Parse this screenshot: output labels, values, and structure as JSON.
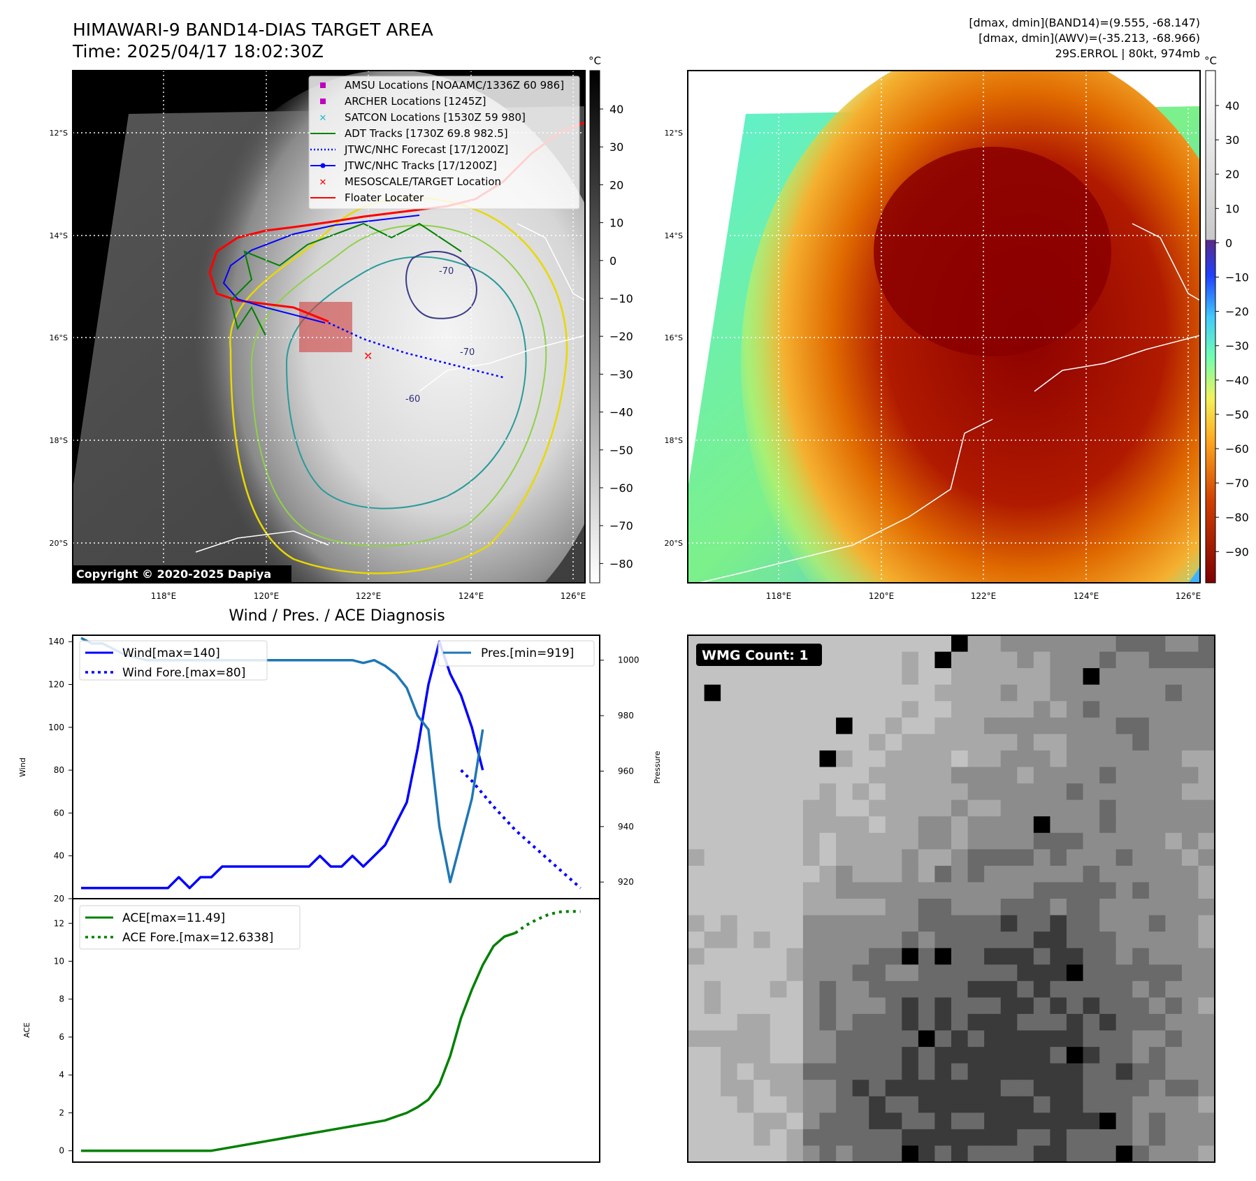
{
  "header": {
    "title_line1": "HIMAWARI-9 BAND14-DIAS TARGET AREA",
    "title_line2": "Time: 2025/04/17 18:02:30Z",
    "info_line1": "[dmax, dmin](BAND14)=(9.555, -68.147)",
    "info_line2": "[dmax, dmin](AWV)=(-35.213, -68.966)",
    "info_line3": "29S.ERROL | 80kt, 974mb"
  },
  "maps": {
    "lat_labels": [
      "12°S",
      "14°S",
      "16°S",
      "18°S",
      "20°S"
    ],
    "lon_labels": [
      "118°E",
      "120°E",
      "122°E",
      "124°E",
      "126°E"
    ],
    "copyright": "Copyright © 2020-2025 Dapiya",
    "contour_labels": [
      "-70",
      "-70",
      "-60"
    ],
    "gray_colorbar": {
      "unit": "°C",
      "ticks": [
        "40",
        "30",
        "20",
        "10",
        "0",
        "−10",
        "−20",
        "−30",
        "−40",
        "−50",
        "−60",
        "−70",
        "−80"
      ]
    },
    "color_colorbar": {
      "unit": "°C",
      "ticks": [
        "40",
        "30",
        "20",
        "10",
        "0",
        "−10",
        "−20",
        "−30",
        "−40",
        "−50",
        "−60",
        "−70",
        "−80",
        "−90"
      ]
    },
    "legend": [
      {
        "label": "AMSU Locations [NOAAMC/1336Z 60 986]",
        "color": "#bf00bf",
        "marker": "square"
      },
      {
        "label": "ARCHER Locations [1245Z]",
        "color": "#bf00bf",
        "marker": "square"
      },
      {
        "label": "SATCON Locations [1530Z 59 980]",
        "color": "#17becf",
        "marker": "x"
      },
      {
        "label": "ADT Tracks [1730Z 69.8 982.5]",
        "color": "#008000",
        "marker": "line"
      },
      {
        "label": "JTWC/NHC Forecast [17/1200Z]",
        "color": "#0000ff",
        "marker": "dotted"
      },
      {
        "label": "JTWC/NHC Tracks [17/1200Z]",
        "color": "#0000ff",
        "marker": "line-dot"
      },
      {
        "label": "MESOSCALE/TARGET Location",
        "color": "#ff0000",
        "marker": "x"
      },
      {
        "label": "Floater Locater",
        "color": "#ff0000",
        "marker": "line"
      }
    ]
  },
  "diagnosis": {
    "title": "Wind / Pres. / ACE Diagnosis",
    "wind_ylabel": "Wind",
    "pres_ylabel": "Pressure",
    "ace_ylabel": "ACE",
    "legend_wind": "Wind[max=140]",
    "legend_wind_fore": "Wind Fore.[max=80]",
    "legend_pres": "Pres.[min=919]",
    "legend_ace": "ACE[max=11.49]",
    "legend_ace_fore": "ACE Fore.[max=12.6338]"
  },
  "wmg": {
    "label": "WMG Count: 1"
  },
  "colors": {
    "wind": "#0000ff",
    "pres": "#1f77b4",
    "ace": "#008000"
  },
  "chart_data": [
    {
      "type": "line",
      "title": "Wind / Pres. / ACE Diagnosis",
      "ylabel": "Wind",
      "ylim": [
        20,
        143
      ],
      "yticks": [
        20,
        40,
        60,
        80,
        100,
        120,
        140
      ],
      "series": [
        {
          "name": "Wind[max=140]",
          "x": [
            0,
            1,
            2,
            3,
            4,
            5,
            6,
            7,
            8,
            9,
            10,
            11,
            12,
            13,
            14,
            15,
            16,
            17,
            18,
            19,
            20,
            21,
            22,
            23,
            24,
            25,
            26,
            27,
            28,
            29,
            30,
            31,
            32,
            33,
            34,
            35
          ],
          "values": [
            25,
            25,
            25,
            25,
            25,
            25,
            25,
            25,
            25,
            30,
            25,
            30,
            30,
            35,
            35,
            35,
            35,
            35,
            35,
            35,
            35,
            35,
            40,
            35,
            35,
            40,
            35,
            40,
            45,
            55,
            65,
            90,
            120,
            140,
            125,
            115
          ]
        },
        {
          "name": "Wind Fore.[max=80]",
          "x": [
            35,
            36,
            38,
            40,
            42,
            44,
            46
          ],
          "values": [
            80,
            75,
            63,
            52,
            43,
            34,
            25
          ]
        }
      ],
      "extra_wind_points": {
        "x": [
          36,
          37
        ],
        "values": [
          100,
          80
        ]
      }
    },
    {
      "type": "line",
      "ylabel": "Pressure",
      "ylim": [
        914,
        1009
      ],
      "yticks": [
        920,
        940,
        960,
        980,
        1000
      ],
      "series": [
        {
          "name": "Pres.[min=919]",
          "x": [
            0,
            1,
            2,
            3,
            4,
            5,
            6,
            7,
            8,
            9,
            10,
            11,
            12,
            13,
            14,
            15,
            16,
            17,
            18,
            19,
            20,
            21,
            22,
            23,
            24,
            25,
            26,
            27,
            28,
            29,
            30,
            31,
            32,
            33,
            34,
            35,
            36,
            37
          ],
          "values": [
            1008,
            1006,
            1006,
            1004,
            1002,
            1001,
            1000,
            1000,
            1000,
            1000,
            1000,
            1000,
            1000,
            1000,
            1000,
            1000,
            1000,
            1000,
            1000,
            1000,
            1000,
            1000,
            1000,
            1000,
            1000,
            1000,
            999,
            1000,
            998,
            995,
            990,
            980,
            975,
            940,
            920,
            935,
            950,
            975
          ]
        }
      ]
    },
    {
      "type": "line",
      "ylabel": "ACE",
      "ylim": [
        -0.6,
        13.3
      ],
      "yticks": [
        0,
        2,
        4,
        6,
        8,
        10,
        12
      ],
      "series": [
        {
          "name": "ACE[max=11.49]",
          "x": [
            0,
            4,
            8,
            12,
            14,
            16,
            18,
            20,
            22,
            24,
            26,
            28,
            29,
            30,
            31,
            32,
            33,
            34,
            35,
            36,
            37,
            38,
            39,
            40
          ],
          "values": [
            0,
            0,
            0,
            0,
            0.2,
            0.4,
            0.6,
            0.8,
            1.0,
            1.2,
            1.4,
            1.6,
            1.8,
            2.0,
            2.3,
            2.7,
            3.5,
            5.0,
            7.0,
            8.5,
            9.8,
            10.8,
            11.3,
            11.49
          ]
        },
        {
          "name": "ACE Fore.[max=12.6338]",
          "x": [
            40,
            41,
            42,
            43,
            44,
            45,
            46
          ],
          "values": [
            11.49,
            11.9,
            12.2,
            12.45,
            12.6,
            12.63,
            12.63
          ]
        }
      ]
    }
  ]
}
